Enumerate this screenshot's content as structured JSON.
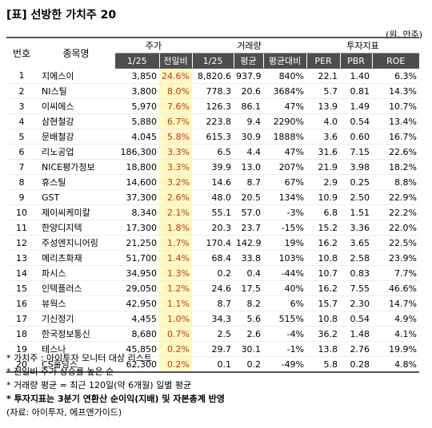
{
  "title": "[표] 선방한 가치주 20",
  "unit": "(원, 만주)",
  "header": {
    "no": "번호",
    "name": "종목명",
    "price_group": "주가",
    "volume_group": "거래량",
    "invest_group": "투자지표",
    "price_date": "1/25",
    "price_change": "전일비",
    "volume_date": "1/25",
    "volume_avg": "평균",
    "volume_ratio": "평균대비",
    "per": "PER",
    "pbr": "PBR",
    "roe": "ROE"
  },
  "rows": [
    {
      "no": "1",
      "name": "지에스이",
      "price": "3,850",
      "chg": "24.6%",
      "vol": "8,820.6",
      "avg": "937.9",
      "ratio": "840%",
      "per": "22.1",
      "pbr": "1.40",
      "roe": "6.3%"
    },
    {
      "no": "2",
      "name": "NI스틸",
      "price": "3,800",
      "chg": "8.0%",
      "vol": "778.3",
      "avg": "20.6",
      "ratio": "3684%",
      "per": "5.7",
      "pbr": "0.81",
      "roe": "14.3%"
    },
    {
      "no": "3",
      "name": "이씨에스",
      "price": "5,970",
      "chg": "7.6%",
      "vol": "126.3",
      "avg": "86.1",
      "ratio": "47%",
      "per": "13.9",
      "pbr": "1.49",
      "roe": "10.7%"
    },
    {
      "no": "4",
      "name": "삼현철강",
      "price": "5,880",
      "chg": "6.7%",
      "vol": "223.8",
      "avg": "9.4",
      "ratio": "2290%",
      "per": "4.0",
      "pbr": "0.54",
      "roe": "13.4%"
    },
    {
      "no": "5",
      "name": "문배철강",
      "price": "4,045",
      "chg": "5.8%",
      "vol": "615.3",
      "avg": "30.9",
      "ratio": "1888%",
      "per": "3.6",
      "pbr": "0.60",
      "roe": "16.7%"
    },
    {
      "no": "6",
      "name": "리노공업",
      "price": "186,300",
      "chg": "3.3%",
      "vol": "6.5",
      "avg": "4.4",
      "ratio": "47%",
      "per": "31.6",
      "pbr": "7.15",
      "roe": "22.6%"
    },
    {
      "no": "7",
      "name": "NICE평가정보",
      "price": "18,800",
      "chg": "3.3%",
      "vol": "39.9",
      "avg": "13.0",
      "ratio": "207%",
      "per": "21.9",
      "pbr": "3.98",
      "roe": "18.2%"
    },
    {
      "no": "8",
      "name": "휴스틸",
      "price": "14,600",
      "chg": "3.2%",
      "vol": "14.6",
      "avg": "8.7",
      "ratio": "67%",
      "per": "2.9",
      "pbr": "0.25",
      "roe": "8.8%"
    },
    {
      "no": "9",
      "name": "GST",
      "price": "37,300",
      "chg": "2.6%",
      "vol": "48.0",
      "avg": "20.5",
      "ratio": "134%",
      "per": "10.9",
      "pbr": "2.50",
      "roe": "22.9%"
    },
    {
      "no": "10",
      "name": "제이씨케미칼",
      "price": "8,340",
      "chg": "2.1%",
      "vol": "55.1",
      "avg": "57.0",
      "ratio": "-3%",
      "per": "6.8",
      "pbr": "1.51",
      "roe": "22.2%"
    },
    {
      "no": "11",
      "name": "한양디지텍",
      "price": "17,300",
      "chg": "1.8%",
      "vol": "20.3",
      "avg": "23.7",
      "ratio": "-15%",
      "per": "15.2",
      "pbr": "3.36",
      "roe": "22.0%"
    },
    {
      "no": "12",
      "name": "주성엔지니어링",
      "price": "21,250",
      "chg": "1.7%",
      "vol": "170.4",
      "avg": "142.9",
      "ratio": "19%",
      "per": "16.2",
      "pbr": "3.65",
      "roe": "22.5%"
    },
    {
      "no": "13",
      "name": "메리츠화재",
      "price": "51,700",
      "chg": "1.4%",
      "vol": "68.4",
      "avg": "33.8",
      "ratio": "103%",
      "per": "10.8",
      "pbr": "2.58",
      "roe": "23.9%"
    },
    {
      "no": "14",
      "name": "파시스",
      "price": "34,950",
      "chg": "1.3%",
      "vol": "0.2",
      "avg": "0.4",
      "ratio": "-44%",
      "per": "10.7",
      "pbr": "0.83",
      "roe": "7.7%"
    },
    {
      "no": "15",
      "name": "인텍플러스",
      "price": "29,050",
      "chg": "1.2%",
      "vol": "24.6",
      "avg": "17.5",
      "ratio": "40%",
      "per": "16.2",
      "pbr": "7.55",
      "roe": "46.6%"
    },
    {
      "no": "16",
      "name": "뷰웍스",
      "price": "42,950",
      "chg": "1.1%",
      "vol": "8.7",
      "avg": "8.2",
      "ratio": "6%",
      "per": "15.7",
      "pbr": "2.30",
      "roe": "14.7%"
    },
    {
      "no": "17",
      "name": "기신정기",
      "price": "4,455",
      "chg": "1.0%",
      "vol": "34.3",
      "avg": "5.6",
      "ratio": "515%",
      "per": "10.8",
      "pbr": "0.54",
      "roe": "4.9%"
    },
    {
      "no": "18",
      "name": "한국정보통신",
      "price": "8,680",
      "chg": "0.7%",
      "vol": "2.5",
      "avg": "2.6",
      "ratio": "-4%",
      "per": "36.2",
      "pbr": "1.48",
      "roe": "4.1%"
    },
    {
      "no": "19",
      "name": "테스나",
      "price": "45,850",
      "chg": "0.2%",
      "vol": "29.7",
      "avg": "30.1",
      "ratio": "-1%",
      "per": "13.8",
      "pbr": "2.76",
      "roe": "19.9%"
    },
    {
      "no": "20",
      "name": "CS홀딩스",
      "price": "62,300",
      "chg": "0.2%",
      "vol": "0.1",
      "avg": "0.2",
      "ratio": "-49%",
      "per": "5.8",
      "pbr": "0.28",
      "roe": "4.8%"
    }
  ],
  "notes": [
    "* 가치주 : 아이투자 모니터 대상 리스트",
    "* 전일비 주가 상승률 높은 순",
    "* 거래량 평균 = 최근 120일(약 6개월) 일별 평균",
    "* 투자지표는 3분기 연환산 순이익(지배) 및 자본총계 반영",
    "(자료: 아이투자, 에프앤가이드)"
  ],
  "colors": {
    "header_dark": "#4d4d4d",
    "change_highlight_bg": "#fff9c2",
    "change_text": "#d12e1f"
  }
}
